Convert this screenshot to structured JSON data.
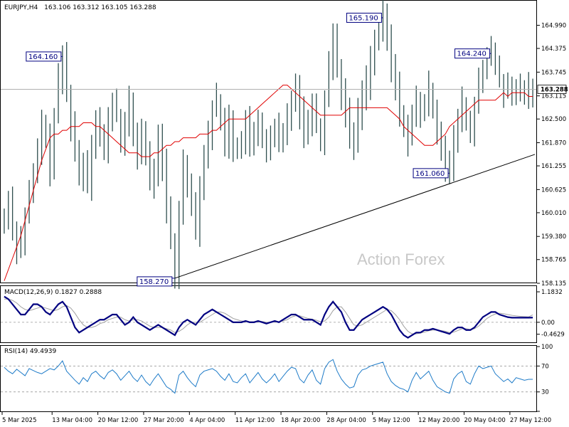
{
  "chart_data": {
    "type": "line",
    "title": "EURJPY,H4",
    "ohlc_text": "163.106 163.312 163.105 163.288",
    "watermark": "Action Forex",
    "last_price": 163.288,
    "last_price_label": "163.288",
    "ylim": [
      158.155,
      165.605
    ],
    "price_ticks": [
      "164.990",
      "164.375",
      "163.745",
      "163.115",
      "162.500",
      "161.870",
      "161.255",
      "160.625",
      "160.010",
      "159.380",
      "158.765",
      "158.135"
    ],
    "price_tick_values": [
      164.99,
      164.375,
      163.745,
      163.115,
      162.5,
      161.87,
      161.255,
      160.625,
      160.01,
      159.38,
      158.765,
      158.135
    ],
    "x_ticks": [
      "5 Mar 2025",
      "13 Mar 04:00",
      "20 Mar 12:00",
      "27 Mar 20:00",
      "4 Apr 04:00",
      "11 Apr 12:00",
      "18 Apr 20:00",
      "28 Apr 04:00",
      "5 May 12:00",
      "12 May 20:00",
      "20 May 04:00",
      "27 May 12:00"
    ],
    "x_tick_positions": [
      0,
      12,
      23,
      34,
      45,
      56,
      67,
      78,
      89,
      100,
      111,
      122
    ],
    "bars_count": 128,
    "close_series": [
      159.8,
      160.4,
      159.6,
      159.1,
      159.3,
      159.9,
      160.5,
      161.0,
      161.6,
      162.4,
      161.9,
      161.2,
      162.6,
      163.5,
      164.16,
      163.2,
      162.4,
      161.6,
      161.0,
      161.4,
      160.8,
      161.9,
      162.5,
      162.0,
      161.7,
      162.4,
      163.0,
      162.6,
      161.9,
      162.3,
      162.9,
      162.1,
      161.6,
      162.2,
      161.5,
      160.8,
      161.2,
      161.9,
      161.3,
      160.1,
      159.2,
      158.27,
      160.1,
      161.3,
      160.9,
      160.2,
      159.6,
      160.8,
      161.5,
      162.1,
      162.8,
      163.0,
      162.4,
      161.9,
      162.5,
      161.8,
      161.6,
      162.0,
      162.4,
      161.7,
      162.1,
      162.5,
      162.0,
      161.6,
      161.9,
      162.3,
      161.8,
      162.1,
      162.6,
      163.1,
      163.4,
      162.7,
      162.1,
      162.5,
      163.0,
      162.3,
      161.9,
      163.1,
      164.0,
      164.7,
      163.9,
      163.2,
      162.6,
      162.1,
      161.9,
      162.6,
      163.2,
      163.5,
      164.1,
      164.5,
      164.9,
      165.19,
      164.6,
      163.9,
      163.3,
      162.7,
      162.3,
      162.0,
      162.5,
      163.0,
      162.6,
      162.9,
      163.3,
      162.8,
      162.2,
      161.8,
      161.3,
      161.06,
      161.9,
      162.5,
      162.9,
      162.4,
      162.1,
      162.8,
      163.6,
      163.9,
      164.1,
      164.24,
      163.9,
      163.5,
      163.2,
      163.288,
      163.1,
      163.288,
      163.3,
      163.25,
      163.288,
      163.288
    ],
    "ma_series": [
      158.2,
      158.5,
      158.8,
      159.1,
      159.4,
      159.8,
      160.2,
      160.6,
      161.0,
      161.4,
      161.7,
      162.0,
      162.1,
      162.1,
      162.2,
      162.2,
      162.3,
      162.3,
      162.3,
      162.4,
      162.4,
      162.4,
      162.3,
      162.3,
      162.2,
      162.1,
      162.0,
      161.9,
      161.8,
      161.7,
      161.6,
      161.6,
      161.6,
      161.5,
      161.5,
      161.5,
      161.6,
      161.6,
      161.7,
      161.8,
      161.8,
      161.9,
      161.9,
      162.0,
      162.0,
      162.0,
      162.0,
      162.1,
      162.1,
      162.1,
      162.2,
      162.2,
      162.3,
      162.4,
      162.5,
      162.5,
      162.5,
      162.5,
      162.5,
      162.6,
      162.7,
      162.8,
      162.9,
      163.0,
      163.1,
      163.2,
      163.3,
      163.4,
      163.4,
      163.3,
      163.2,
      163.1,
      163.0,
      162.9,
      162.8,
      162.7,
      162.6,
      162.6,
      162.6,
      162.6,
      162.6,
      162.6,
      162.7,
      162.8,
      162.8,
      162.8,
      162.8,
      162.8,
      162.8,
      162.8,
      162.8,
      162.8,
      162.8,
      162.7,
      162.6,
      162.5,
      162.3,
      162.2,
      162.1,
      162.0,
      161.9,
      161.8,
      161.8,
      161.8,
      161.9,
      162.0,
      162.1,
      162.3,
      162.4,
      162.5,
      162.6,
      162.7,
      162.8,
      162.9,
      163.0,
      163.0,
      163.0,
      163.0,
      163.0,
      163.1,
      163.2,
      163.1,
      163.2,
      163.2,
      163.2,
      163.2,
      163.1,
      163.1
    ],
    "annotations": [
      {
        "label": "164.160",
        "value": 164.16,
        "bar": 14
      },
      {
        "label": "158.270",
        "value": 158.27,
        "bar": 41
      },
      {
        "label": "165.190",
        "value": 165.19,
        "bar": 91
      },
      {
        "label": "161.060",
        "value": 161.06,
        "bar": 107
      },
      {
        "label": "164.240",
        "value": 164.24,
        "bar": 117
      }
    ],
    "trendline": {
      "from_bar": 41,
      "from_value": 158.27,
      "to_bar": 128,
      "to_value": 161.56
    },
    "macd": {
      "title": "MACD(12,26,9) 0.1827 0.2888",
      "value_main": 0.1827,
      "value_signal": 0.2888,
      "ylim": [
        -0.75,
        1.35
      ],
      "ticks": [
        "1.1832",
        "0.00",
        "-0.4629"
      ],
      "tick_values": [
        1.1832,
        0.0,
        -0.4629
      ],
      "main": [
        1.0,
        0.9,
        0.7,
        0.5,
        0.3,
        0.3,
        0.5,
        0.7,
        0.7,
        0.6,
        0.4,
        0.3,
        0.5,
        0.7,
        0.8,
        0.6,
        0.2,
        -0.2,
        -0.4,
        -0.3,
        -0.2,
        -0.1,
        0.0,
        0.1,
        0.1,
        0.2,
        0.3,
        0.3,
        0.1,
        -0.1,
        0.0,
        0.2,
        0.0,
        -0.1,
        -0.2,
        -0.3,
        -0.2,
        -0.1,
        -0.2,
        -0.3,
        -0.4,
        -0.5,
        -0.2,
        0.0,
        0.1,
        0.0,
        -0.1,
        0.1,
        0.3,
        0.4,
        0.5,
        0.4,
        0.3,
        0.2,
        0.1,
        0.0,
        0.0,
        0.0,
        0.05,
        0.0,
        0.0,
        0.05,
        0.0,
        -0.05,
        0.0,
        0.05,
        0.0,
        0.1,
        0.2,
        0.3,
        0.3,
        0.2,
        0.1,
        0.1,
        0.1,
        0.0,
        -0.1,
        0.3,
        0.6,
        0.8,
        0.6,
        0.4,
        0.0,
        -0.3,
        -0.3,
        -0.1,
        0.1,
        0.2,
        0.3,
        0.4,
        0.5,
        0.6,
        0.5,
        0.3,
        0.0,
        -0.3,
        -0.5,
        -0.6,
        -0.5,
        -0.4,
        -0.4,
        -0.3,
        -0.3,
        -0.25,
        -0.3,
        -0.35,
        -0.4,
        -0.45,
        -0.3,
        -0.2,
        -0.2,
        -0.3,
        -0.3,
        -0.2,
        0.0,
        0.2,
        0.3,
        0.4,
        0.4,
        0.3,
        0.25,
        0.2,
        0.18,
        0.18,
        0.18,
        0.18,
        0.18,
        0.1827
      ],
      "signal": [
        0.9,
        0.9,
        0.85,
        0.75,
        0.6,
        0.5,
        0.45,
        0.5,
        0.55,
        0.6,
        0.55,
        0.5,
        0.45,
        0.5,
        0.6,
        0.65,
        0.55,
        0.35,
        0.1,
        -0.1,
        -0.2,
        -0.2,
        -0.15,
        -0.05,
        0.0,
        0.1,
        0.15,
        0.2,
        0.2,
        0.1,
        0.05,
        0.1,
        0.1,
        0.05,
        -0.05,
        -0.15,
        -0.2,
        -0.2,
        -0.2,
        -0.25,
        -0.3,
        -0.4,
        -0.35,
        -0.25,
        -0.1,
        0.0,
        0.0,
        0.0,
        0.1,
        0.2,
        0.3,
        0.4,
        0.4,
        0.35,
        0.25,
        0.15,
        0.1,
        0.05,
        0.03,
        0.02,
        0.02,
        0.03,
        0.03,
        0.0,
        0.0,
        0.02,
        0.02,
        0.05,
        0.1,
        0.2,
        0.25,
        0.25,
        0.2,
        0.15,
        0.12,
        0.08,
        0.02,
        0.05,
        0.2,
        0.45,
        0.6,
        0.6,
        0.4,
        0.15,
        -0.1,
        -0.15,
        -0.1,
        0.0,
        0.1,
        0.2,
        0.3,
        0.4,
        0.5,
        0.45,
        0.3,
        0.1,
        -0.15,
        -0.35,
        -0.45,
        -0.45,
        -0.42,
        -0.38,
        -0.33,
        -0.3,
        -0.3,
        -0.32,
        -0.35,
        -0.4,
        -0.38,
        -0.32,
        -0.25,
        -0.25,
        -0.28,
        -0.25,
        -0.15,
        0.0,
        0.15,
        0.25,
        0.32,
        0.35,
        0.33,
        0.3,
        0.27,
        0.25,
        0.23,
        0.22,
        0.21,
        0.2888
      ]
    },
    "rsi": {
      "title": "RSI(14) 49.4939",
      "value": 49.4939,
      "ylim": [
        0,
        100
      ],
      "ticks": [
        "100",
        "70",
        "30",
        "0"
      ],
      "tick_values": [
        100,
        70,
        30,
        0
      ],
      "levels": [
        70,
        30
      ],
      "values": [
        68,
        62,
        58,
        65,
        60,
        55,
        66,
        63,
        60,
        58,
        62,
        66,
        64,
        70,
        78,
        62,
        55,
        48,
        42,
        52,
        46,
        58,
        62,
        55,
        50,
        60,
        64,
        58,
        48,
        55,
        62,
        52,
        46,
        56,
        46,
        40,
        50,
        58,
        48,
        38,
        34,
        28,
        56,
        62,
        52,
        44,
        38,
        56,
        62,
        64,
        66,
        62,
        54,
        48,
        58,
        46,
        44,
        52,
        58,
        44,
        52,
        60,
        50,
        44,
        50,
        58,
        46,
        54,
        62,
        68,
        66,
        50,
        44,
        56,
        64,
        48,
        42,
        66,
        76,
        80,
        62,
        50,
        42,
        36,
        38,
        56,
        64,
        66,
        70,
        72,
        74,
        76,
        58,
        46,
        40,
        36,
        34,
        30,
        48,
        60,
        50,
        56,
        62,
        48,
        38,
        34,
        30,
        28,
        50,
        58,
        62,
        46,
        42,
        58,
        70,
        66,
        68,
        70,
        58,
        52,
        46,
        50,
        44,
        52,
        50,
        48,
        49.4939,
        49.4939
      ]
    }
  }
}
